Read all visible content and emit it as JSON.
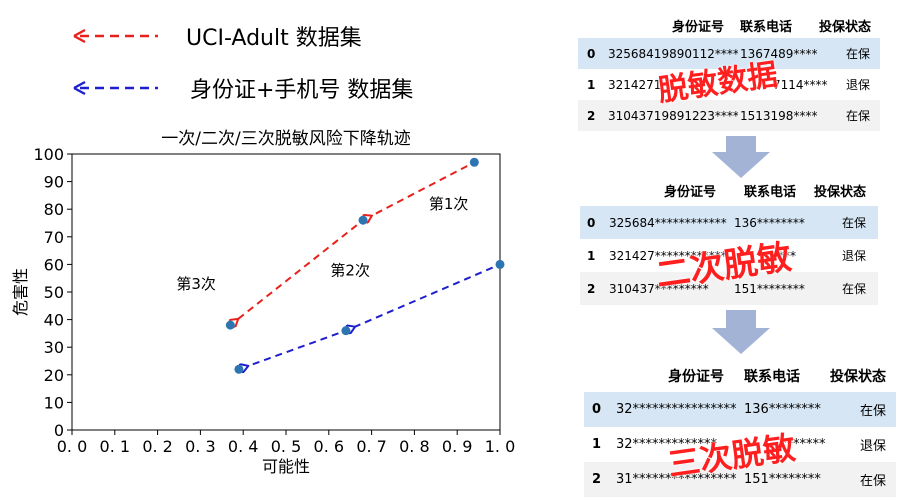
{
  "legend": [
    {
      "label": "UCI-Adult 数据集",
      "color": "#e8211c"
    },
    {
      "label": "身份证+手机号 数据集",
      "color": "#1f1fd0"
    }
  ],
  "chart_data": {
    "type": "scatter",
    "title": "一次/二次/三次脱敏风险下降轨迹",
    "xlabel": "可能性",
    "ylabel": "危害性",
    "xlim": [
      0,
      1
    ],
    "ylim": [
      0,
      100
    ],
    "xticks": [
      "0. 0",
      "0. 1",
      "0. 2",
      "0. 3",
      "0. 4",
      "0. 5",
      "0. 6",
      "0. 7",
      "0. 8",
      "0. 9",
      "1. 0"
    ],
    "yticks": [
      "0",
      "10",
      "20",
      "30",
      "40",
      "50",
      "60",
      "70",
      "80",
      "90",
      "100"
    ],
    "point_color": "#2d74b2",
    "series": [
      {
        "name": "UCI-Adult 数据集",
        "color": "#e8211c",
        "points": [
          [
            0.94,
            97
          ],
          [
            0.68,
            76
          ],
          [
            0.37,
            38
          ]
        ]
      },
      {
        "name": "身份证+手机号 数据集",
        "color": "#1f1fd0",
        "points": [
          [
            1.0,
            60
          ],
          [
            0.64,
            36
          ],
          [
            0.39,
            22
          ]
        ]
      }
    ],
    "annotations": [
      {
        "text": "第1次",
        "x": 0.88,
        "y": 80
      },
      {
        "text": "第2次",
        "x": 0.65,
        "y": 56
      },
      {
        "text": "第3次",
        "x": 0.29,
        "y": 51
      }
    ]
  },
  "tables": [
    {
      "stamp": "脱敏数据",
      "headers": [
        "身份证号",
        "联系电话",
        "投保状态"
      ],
      "rows": [
        {
          "idx": "0",
          "id": "3256841989011​2****",
          "phone": "1367489****",
          "status": "在保"
        },
        {
          "idx": "1",
          "id": "3214271",
          "phone": "7114****",
          "status": "退保"
        },
        {
          "idx": "2",
          "id": "31043719891223****",
          "phone": "1513198****",
          "status": "在保"
        }
      ]
    },
    {
      "stamp": "二次脱敏",
      "headers": [
        "身份证号",
        "联系电话",
        "投保状态"
      ],
      "rows": [
        {
          "idx": "0",
          "id": "325684************",
          "phone": "136********",
          "status": "在保"
        },
        {
          "idx": "1",
          "id": "321427************",
          "phone": "****",
          "status": "退保"
        },
        {
          "idx": "2",
          "id": "310437*********",
          "phone": "151********",
          "status": "在保"
        }
      ]
    },
    {
      "stamp": "三次脱敏",
      "headers": [
        "身份证号",
        "联系电话",
        "投保状态"
      ],
      "rows": [
        {
          "idx": "0",
          "id": "32****************",
          "phone": "136********",
          "status": "在保"
        },
        {
          "idx": "1",
          "id": "32*************",
          "phone": "*******",
          "status": "退保"
        },
        {
          "idx": "2",
          "id": "31****************",
          "phone": "151********",
          "status": "在保"
        }
      ]
    }
  ],
  "flow_arrow_color": "#a2b3d6"
}
